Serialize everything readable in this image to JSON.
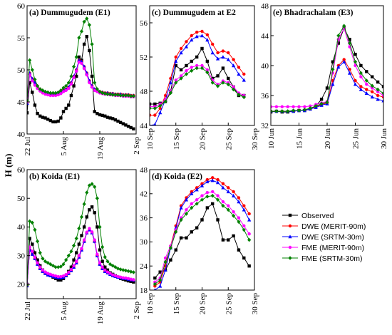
{
  "figure": {
    "ylabel": "H (m)"
  },
  "legend": [
    {
      "name": "Observed",
      "color": "#000000",
      "marker": "square"
    },
    {
      "name": "DWE (MERIT-90m)",
      "color": "#ff0000",
      "marker": "circle"
    },
    {
      "name": "DWE (SRTM-30m)",
      "color": "#0000ff",
      "marker": "triangle"
    },
    {
      "name": "FME (MERIT-90m)",
      "color": "#ff00ff",
      "marker": "circle"
    },
    {
      "name": "FME (SRTM-30m)",
      "color": "#008000",
      "marker": "diamond"
    }
  ],
  "chart_data": [
    {
      "id": "a",
      "type": "line",
      "title": "(a) Dummugudem (E1)",
      "xlim": [
        0,
        42
      ],
      "xticks": [
        {
          "v": 0,
          "label": "22 Jul"
        },
        {
          "v": 14,
          "label": "5 Aug"
        },
        {
          "v": 28,
          "label": "19 Aug"
        },
        {
          "v": 42,
          "label": "2 Sep"
        }
      ],
      "ylim": [
        40,
        60
      ],
      "yticks": [
        40,
        45,
        50,
        55,
        60
      ],
      "x_start": 0,
      "series": [
        {
          "name": "Observed",
          "values": [
            43.3,
            48.0,
            46.5,
            44.5,
            43.2,
            42.8,
            42.6,
            42.5,
            42.3,
            42.1,
            41.9,
            41.9,
            42.0,
            42.5,
            43.5,
            44.0,
            44.5,
            46.0,
            47.5,
            49.0,
            52.0,
            51.5,
            54.0,
            55.2,
            53.0,
            49.0,
            43.5,
            43.2,
            43.0,
            42.9,
            42.8,
            42.6,
            42.5,
            42.4,
            42.2,
            42.0,
            41.8,
            41.6,
            41.4,
            41.2,
            41.0,
            40.8
          ]
        },
        {
          "name": "DWE (MERIT-90m)",
          "values": [
            44.8,
            49.5,
            48.6,
            48.0,
            47.4,
            47.0,
            46.7,
            46.5,
            46.3,
            46.2,
            46.2,
            46.2,
            46.3,
            46.5,
            46.8,
            47.0,
            47.3,
            48.0,
            49.0,
            50.0,
            51.5,
            51.3,
            50.5,
            49.5,
            48.3,
            47.5,
            47.0,
            46.8,
            46.6,
            46.5,
            46.4,
            46.4,
            46.3,
            46.3,
            46.2,
            46.2,
            46.2,
            46.1,
            46.1,
            46.1,
            46.0,
            46.0
          ]
        },
        {
          "name": "DWE (SRTM-30m)",
          "values": [
            44.8,
            49.5,
            48.6,
            48.0,
            47.4,
            47.0,
            46.7,
            46.5,
            46.3,
            46.2,
            46.2,
            46.2,
            46.3,
            46.5,
            46.8,
            47.0,
            47.3,
            48.0,
            49.0,
            50.0,
            51.5,
            51.3,
            50.5,
            49.5,
            48.3,
            47.5,
            47.0,
            46.8,
            46.6,
            46.5,
            46.4,
            46.4,
            46.3,
            46.3,
            46.2,
            46.2,
            46.2,
            46.1,
            46.1,
            46.1,
            46.0,
            46.0
          ]
        },
        {
          "name": "FME (MERIT-90m)",
          "values": [
            45.0,
            49.2,
            48.3,
            47.6,
            47.1,
            46.7,
            46.4,
            46.2,
            46.1,
            46.0,
            46.0,
            46.0,
            46.1,
            46.3,
            46.6,
            46.8,
            47.1,
            47.8,
            48.8,
            49.8,
            51.2,
            51.0,
            50.2,
            49.2,
            48.0,
            47.3,
            46.8,
            46.6,
            46.4,
            46.3,
            46.2,
            46.2,
            46.1,
            46.1,
            46.0,
            46.0,
            46.0,
            45.9,
            45.9,
            45.9,
            45.8,
            45.8
          ]
        },
        {
          "name": "FME (SRTM-30m)",
          "values": [
            45.2,
            51.5,
            50.0,
            48.5,
            47.5,
            47.0,
            46.8,
            46.6,
            46.5,
            46.4,
            46.4,
            46.4,
            46.5,
            46.8,
            47.2,
            47.5,
            48.0,
            49.0,
            50.5,
            52.0,
            55.0,
            56.0,
            57.5,
            58.0,
            57.0,
            54.0,
            48.0,
            47.0,
            46.6,
            46.4,
            46.3,
            46.2,
            46.2,
            46.1,
            46.1,
            46.1,
            46.0,
            46.0,
            46.0,
            46.0,
            45.9,
            45.9
          ]
        }
      ]
    },
    {
      "id": "c",
      "type": "line",
      "title": "(c) Dummugudem at E2",
      "xlim": [
        10,
        30
      ],
      "xticks": [
        {
          "v": 10,
          "label": "10 Sep"
        },
        {
          "v": 15,
          "label": "15 Sep"
        },
        {
          "v": 20,
          "label": "20 Sep"
        },
        {
          "v": 25,
          "label": "25 Sep"
        },
        {
          "v": 30,
          "label": "30 Sep"
        }
      ],
      "ylim": [
        44,
        58
      ],
      "yticks": [
        44,
        48,
        52,
        56
      ],
      "x_start": 10,
      "series": [
        {
          "name": "Observed",
          "values": [
            46.5,
            46.5,
            46.6,
            46.8,
            48.0,
            51.0,
            50.5,
            51.0,
            51.5,
            52.0,
            53.0,
            51.5,
            49.5,
            49.8,
            50.7,
            49.5,
            48.5,
            47.5,
            47.5
          ]
        },
        {
          "name": "DWE (MERIT-90m)",
          "values": [
            45.2,
            45.2,
            46.0,
            47.5,
            49.5,
            52.0,
            53.0,
            53.8,
            54.5,
            54.9,
            55.0,
            54.6,
            53.5,
            52.5,
            52.7,
            52.5,
            51.7,
            50.8,
            50.0
          ]
        },
        {
          "name": "DWE (SRTM-30m)",
          "values": [
            44.0,
            44.1,
            45.5,
            47.0,
            49.0,
            51.5,
            52.5,
            53.2,
            54.0,
            54.4,
            54.5,
            54.0,
            52.5,
            51.8,
            52.0,
            51.7,
            51.0,
            50.0,
            49.3
          ]
        },
        {
          "name": "FME (MERIT-90m)",
          "values": [
            46.2,
            46.2,
            46.5,
            47.0,
            48.0,
            49.3,
            49.8,
            50.4,
            50.8,
            51.0,
            51.0,
            50.5,
            49.3,
            48.8,
            49.2,
            49.0,
            48.5,
            47.8,
            47.5
          ]
        },
        {
          "name": "FME (SRTM-30m)",
          "values": [
            46.0,
            46.0,
            46.3,
            46.8,
            47.8,
            49.0,
            49.5,
            50.0,
            50.4,
            50.7,
            50.7,
            50.2,
            49.0,
            48.6,
            49.0,
            48.8,
            48.2,
            47.6,
            47.3
          ]
        }
      ]
    },
    {
      "id": "e",
      "type": "line",
      "title": "(e) Bhadrachalam (E3)",
      "xlim": [
        10,
        30
      ],
      "xticks": [
        {
          "v": 10,
          "label": "10 Jun"
        },
        {
          "v": 15,
          "label": "15 Jun"
        },
        {
          "v": 20,
          "label": "20 Jun"
        },
        {
          "v": 25,
          "label": "25 Jun"
        },
        {
          "v": 30,
          "label": "30 Jun"
        }
      ],
      "ylim": [
        32,
        48
      ],
      "yticks": [
        32,
        36,
        40,
        44,
        48
      ],
      "x_start": 10,
      "series": [
        {
          "name": "Observed",
          "values": [
            33.8,
            33.9,
            33.8,
            33.8,
            33.9,
            34.0,
            34.0,
            34.2,
            34.6,
            35.5,
            37.0,
            40.5,
            43.0,
            45.0,
            43.5,
            41.5,
            40.0,
            39.2,
            38.5,
            37.8,
            37.2
          ]
        },
        {
          "name": "DWE (MERIT-90m)",
          "values": [
            33.9,
            33.9,
            33.9,
            33.9,
            33.9,
            34.0,
            34.0,
            34.2,
            34.5,
            34.8,
            35.0,
            38.0,
            40.0,
            40.8,
            39.5,
            38.0,
            37.2,
            36.8,
            36.5,
            36.0,
            35.8
          ]
        },
        {
          "name": "DWE (SRTM-30m)",
          "values": [
            33.9,
            33.9,
            33.9,
            33.9,
            33.9,
            34.0,
            34.0,
            34.2,
            34.4,
            34.7,
            34.9,
            37.5,
            39.8,
            40.5,
            39.0,
            37.5,
            36.8,
            36.3,
            35.8,
            35.5,
            35.3
          ]
        },
        {
          "name": "FME (MERIT-90m)",
          "values": [
            34.5,
            34.5,
            34.5,
            34.5,
            34.5,
            34.5,
            34.5,
            34.6,
            34.8,
            35.0,
            35.2,
            39.0,
            43.5,
            45.0,
            42.5,
            40.0,
            38.5,
            37.5,
            37.0,
            36.5,
            36.0
          ]
        },
        {
          "name": "FME (SRTM-30m)",
          "values": [
            33.9,
            33.9,
            33.9,
            33.9,
            34.0,
            34.0,
            34.1,
            34.3,
            34.6,
            34.9,
            35.1,
            39.5,
            44.0,
            45.3,
            43.0,
            40.5,
            39.0,
            38.0,
            37.3,
            36.8,
            36.3
          ]
        }
      ]
    },
    {
      "id": "b",
      "type": "line",
      "title": "(b) Koida (E1)",
      "xlim": [
        0,
        42
      ],
      "xticks": [
        {
          "v": 0,
          "label": "22 Jul"
        },
        {
          "v": 14,
          "label": "5 Aug"
        },
        {
          "v": 28,
          "label": "19 Aug"
        },
        {
          "v": 42,
          "label": "2 Sep"
        }
      ],
      "ylim": [
        15,
        60
      ],
      "yticks": [
        20,
        30,
        40,
        50,
        60
      ],
      "x_start": 0,
      "series": [
        {
          "name": "Observed",
          "values": [
            20.0,
            36.0,
            34.0,
            31.0,
            28.5,
            26.5,
            25.0,
            24.0,
            23.5,
            23.0,
            22.5,
            22.0,
            21.5,
            21.5,
            22.0,
            23.0,
            24.5,
            26.0,
            28.5,
            31.0,
            34.0,
            37.0,
            40.0,
            43.5,
            46.0,
            47.0,
            45.0,
            40.0,
            32.0,
            28.0,
            26.0,
            25.0,
            24.0,
            23.5,
            23.0,
            22.5,
            22.0,
            21.8,
            21.5,
            21.2,
            21.0,
            20.8
          ]
        },
        {
          "name": "DWE (MERIT-90m)",
          "values": [
            19.5,
            32.0,
            30.5,
            29.0,
            27.0,
            25.5,
            24.5,
            23.8,
            23.3,
            23.0,
            22.8,
            22.5,
            22.3,
            22.3,
            22.5,
            23.0,
            23.8,
            24.8,
            26.0,
            27.5,
            29.5,
            32.0,
            35.0,
            38.0,
            39.0,
            38.0,
            35.0,
            30.0,
            27.0,
            25.5,
            24.5,
            24.0,
            23.5,
            23.0,
            22.8,
            22.5,
            22.3,
            22.1,
            22.0,
            21.8,
            21.6,
            21.5
          ]
        },
        {
          "name": "DWE (SRTM-30m)",
          "values": [
            19.5,
            32.0,
            30.5,
            29.0,
            27.0,
            25.5,
            24.5,
            23.8,
            23.3,
            23.0,
            22.8,
            22.5,
            22.3,
            22.3,
            22.5,
            23.0,
            23.8,
            24.8,
            26.0,
            27.5,
            29.5,
            32.0,
            35.0,
            38.0,
            39.0,
            38.0,
            35.0,
            30.0,
            27.0,
            25.5,
            24.5,
            24.0,
            23.5,
            23.0,
            22.8,
            22.5,
            22.3,
            22.1,
            22.0,
            21.8,
            21.6,
            21.5
          ]
        },
        {
          "name": "FME (MERIT-90m)",
          "values": [
            20.0,
            33.0,
            31.5,
            29.5,
            27.5,
            26.0,
            25.0,
            24.3,
            23.8,
            23.5,
            23.2,
            22.9,
            22.7,
            22.7,
            22.9,
            23.4,
            24.2,
            25.2,
            26.5,
            28.0,
            30.0,
            32.5,
            35.5,
            38.2,
            39.5,
            38.3,
            35.5,
            30.5,
            27.5,
            26.0,
            25.0,
            24.3,
            23.8,
            23.3,
            23.0,
            22.7,
            22.5,
            22.3,
            22.2,
            22.0,
            21.8,
            21.6
          ]
        },
        {
          "name": "FME (SRTM-30m)",
          "values": [
            19.8,
            42.0,
            41.5,
            39.0,
            35.0,
            31.0,
            29.0,
            28.0,
            27.5,
            27.0,
            26.5,
            26.0,
            26.0,
            26.2,
            27.0,
            28.5,
            30.0,
            31.5,
            33.5,
            36.0,
            39.5,
            43.5,
            48.0,
            52.0,
            54.5,
            55.0,
            54.0,
            50.0,
            40.0,
            33.0,
            29.5,
            28.0,
            27.0,
            26.5,
            26.0,
            25.5,
            25.2,
            25.0,
            24.8,
            24.6,
            24.4,
            24.2
          ]
        }
      ]
    },
    {
      "id": "d",
      "type": "line",
      "title": "(d) Koida (E2)",
      "xlim": [
        10,
        30
      ],
      "xticks": [
        {
          "v": 10,
          "label": "10 Sep"
        },
        {
          "v": 15,
          "label": "15 Sep"
        },
        {
          "v": 20,
          "label": "20 Sep"
        },
        {
          "v": 25,
          "label": "25 Sep"
        },
        {
          "v": 30,
          "label": "30 Sep"
        }
      ],
      "ylim": [
        18,
        48
      ],
      "yticks": [
        18,
        24,
        30,
        36,
        42,
        48
      ],
      "x_start": 11,
      "series": [
        {
          "name": "Observed",
          "values": [
            21.0,
            22.5,
            23.0,
            25.5,
            28.0,
            31.0,
            31.0,
            32.5,
            33.5,
            35.5,
            38.5,
            39.5,
            35.5,
            30.5,
            30.5,
            31.5,
            28.0,
            26.0,
            24.0
          ]
        },
        {
          "name": "DWE (MERIT-90m)",
          "values": [
            19.0,
            20.0,
            24.0,
            29.0,
            34.0,
            39.0,
            41.0,
            42.5,
            43.5,
            44.5,
            45.5,
            46.0,
            45.5,
            44.5,
            43.5,
            42.5,
            41.0,
            39.0,
            37.0
          ]
        },
        {
          "name": "DWE (SRTM-30m)",
          "values": [
            18.0,
            19.0,
            23.0,
            28.5,
            33.5,
            38.5,
            40.5,
            42.0,
            43.0,
            44.0,
            45.0,
            45.3,
            44.8,
            43.5,
            42.5,
            41.5,
            40.0,
            38.0,
            35.5
          ]
        },
        {
          "name": "FME (MERIT-90m)",
          "values": [
            20.0,
            21.0,
            26.0,
            29.0,
            33.0,
            36.0,
            38.0,
            39.5,
            40.5,
            41.5,
            42.3,
            42.5,
            41.5,
            40.0,
            39.0,
            37.5,
            36.0,
            34.0,
            32.0
          ]
        },
        {
          "name": "FME (SRTM-30m)",
          "values": [
            19.5,
            20.5,
            25.0,
            28.5,
            32.5,
            35.5,
            37.0,
            38.5,
            39.5,
            40.5,
            41.3,
            41.5,
            40.5,
            39.0,
            38.0,
            36.5,
            35.0,
            33.0,
            30.5
          ]
        }
      ]
    }
  ]
}
